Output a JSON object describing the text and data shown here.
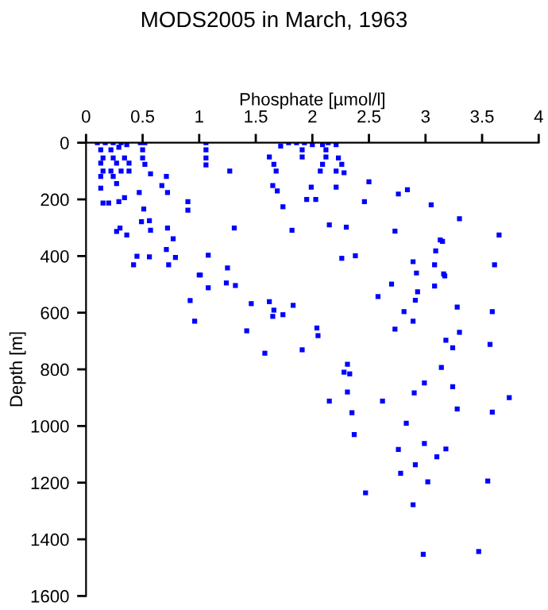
{
  "chart_data": {
    "type": "scatter",
    "title": "MODS2005 in March, 1963",
    "xlabel": "Phosphate [µmol/l]",
    "ylabel": "Depth [m]",
    "xlim": [
      0,
      4
    ],
    "xticks": [
      0,
      0.5,
      1,
      1.5,
      2,
      2.5,
      3,
      3.5,
      4
    ],
    "ylim": [
      1600,
      0
    ],
    "yticks": [
      0,
      200,
      400,
      600,
      800,
      1000,
      1200,
      1400,
      1600
    ],
    "marker": "square",
    "grid": false,
    "legend": false,
    "series": [
      {
        "color": "#0000ff",
        "x": [
          0.1,
          0.17,
          0.24,
          0.31,
          0.36,
          0.48,
          0.52,
          1.06,
          1.72,
          1.79,
          1.86,
          1.93,
          2.0,
          2.09,
          2.14,
          2.21,
          0.13,
          0.22,
          0.29,
          0.5,
          1.06,
          1.91,
          2.12,
          0.15,
          0.24,
          0.34,
          0.5,
          1.06,
          1.62,
          1.91,
          2.12,
          2.23,
          0.13,
          0.27,
          0.38,
          0.52,
          1.06,
          1.66,
          2.09,
          2.26,
          0.15,
          0.22,
          0.31,
          0.38,
          0.57,
          1.27,
          1.68,
          2.07,
          2.21,
          2.28,
          0.13,
          0.24,
          0.71,
          0.27,
          0.67,
          0.72,
          1.65,
          1.69,
          1.99,
          2.21,
          0.13,
          0.15,
          0.2,
          0.29,
          0.34,
          0.47,
          0.51,
          0.9,
          0.9,
          1.74,
          1.95,
          2.03,
          2.46,
          2.5,
          2.76,
          2.84,
          3.05,
          3.3,
          0.27,
          0.3,
          0.36,
          0.49,
          0.56,
          0.57,
          0.72,
          0.77,
          1.31,
          1.82,
          2.15,
          2.3,
          2.73,
          3.13,
          3.15,
          3.65,
          0.45,
          0.42,
          0.56,
          0.71,
          0.73,
          0.79,
          1.08,
          1.01,
          1.25,
          2.26,
          2.38,
          2.89,
          2.92,
          3.09,
          3.08,
          3.16,
          3.61,
          1.0,
          1.08,
          1.24,
          1.32,
          0.92,
          0.96,
          1.46,
          1.62,
          1.66,
          1.65,
          1.74,
          1.83,
          1.42,
          1.58,
          1.91,
          2.04,
          2.05,
          2.31,
          2.28,
          2.33,
          2.31,
          2.15,
          2.35,
          2.37,
          2.58,
          2.7,
          3.17,
          2.93,
          3.08,
          2.91,
          2.81,
          2.89,
          2.73,
          3.28,
          3.59,
          3.18,
          3.3,
          3.24,
          3.57,
          3.14,
          2.99,
          3.24,
          2.9,
          2.62,
          3.28,
          3.59,
          3.74,
          2.83,
          2.99,
          3.18,
          2.76,
          3.1,
          2.91,
          2.78,
          3.02,
          3.55,
          2.47,
          2.89,
          2.98,
          3.47
        ],
        "values": [
          0,
          0,
          0,
          0,
          7,
          0,
          0,
          0,
          12,
          0,
          0,
          0,
          7,
          7,
          0,
          7,
          25,
          25,
          16,
          25,
          25,
          25,
          25,
          54,
          54,
          54,
          54,
          54,
          50,
          50,
          50,
          54,
          72,
          72,
          72,
          76,
          78,
          76,
          76,
          76,
          100,
          100,
          100,
          100,
          110,
          100,
          100,
          100,
          100,
          106,
          119,
          119,
          119,
          144,
          151,
          176,
          151,
          170,
          157,
          157,
          160,
          213,
          213,
          208,
          194,
          176,
          234,
          208,
          238,
          226,
          200,
          200,
          208,
          138,
          181,
          166,
          219,
          268,
          313,
          301,
          326,
          279,
          275,
          309,
          301,
          339,
          301,
          309,
          290,
          298,
          312,
          343,
          348,
          326,
          401,
          431,
          403,
          377,
          431,
          405,
          397,
          467,
          442,
          408,
          399,
          420,
          460,
          382,
          431,
          463,
          431,
          467,
          512,
          495,
          504,
          557,
          630,
          568,
          561,
          591,
          613,
          607,
          574,
          664,
          743,
          731,
          654,
          681,
          782,
          810,
          816,
          880,
          912,
          953,
          1030,
          543,
          499,
          470,
          526,
          506,
          556,
          596,
          630,
          658,
          580,
          596,
          697,
          669,
          724,
          712,
          793,
          848,
          861,
          883,
          912,
          940,
          951,
          900,
          990,
          1062,
          1081,
          1083,
          1109,
          1137,
          1167,
          1197,
          1194,
          1236,
          1278,
          1453,
          1443
        ]
      }
    ]
  }
}
